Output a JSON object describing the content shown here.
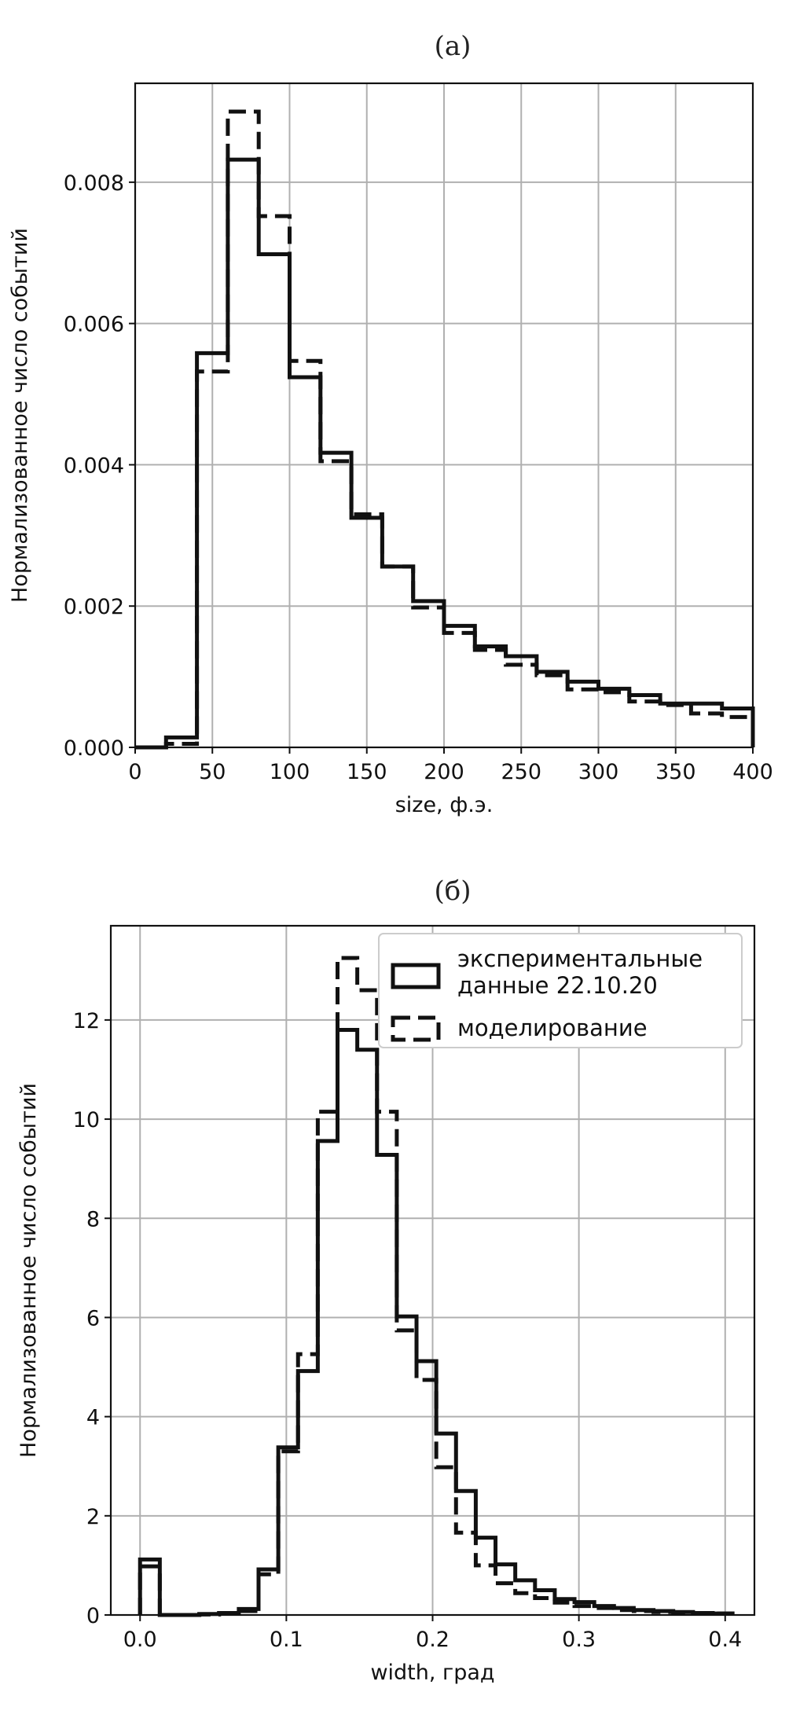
{
  "chart_data": [
    {
      "type": "histogram",
      "panel_label": "(а)",
      "xlabel": "size, ф.э.",
      "ylabel": "Нормализованное число событий",
      "xlim": [
        0,
        400
      ],
      "ylim": [
        0,
        0.0094
      ],
      "xticks": [
        0,
        50,
        100,
        150,
        200,
        250,
        300,
        350,
        400
      ],
      "xtick_labels": [
        "0",
        "50",
        "100",
        "150",
        "200",
        "250",
        "300",
        "350",
        "400"
      ],
      "yticks": [
        0,
        0.002,
        0.004,
        0.006,
        0.008
      ],
      "ytick_labels": [
        "0.000",
        "0.002",
        "0.004",
        "0.006",
        "0.008"
      ],
      "grid": true,
      "bin_edges": [
        0,
        20,
        40,
        60,
        80,
        100,
        120,
        140,
        160,
        180,
        200,
        220,
        240,
        260,
        280,
        300,
        320,
        340,
        360,
        380,
        400
      ],
      "series": [
        {
          "style": "solid",
          "values": [
            0.0,
            0.00014,
            0.00558,
            0.00832,
            0.00698,
            0.00524,
            0.00417,
            0.00325,
            0.00256,
            0.00207,
            0.00172,
            0.00143,
            0.00129,
            0.00107,
            0.00093,
            0.00083,
            0.00074,
            0.00062,
            0.00062,
            0.00055
          ]
        },
        {
          "style": "dashed",
          "values": [
            0.0,
            5e-05,
            0.00532,
            0.009,
            0.00752,
            0.00547,
            0.00405,
            0.0033,
            0.00256,
            0.00198,
            0.00162,
            0.00138,
            0.00117,
            0.00102,
            0.00082,
            0.00078,
            0.00065,
            0.0006,
            0.00048,
            0.00043
          ]
        }
      ]
    },
    {
      "type": "histogram",
      "panel_label": "(б)",
      "xlabel": "width, град",
      "ylabel": "Нормализованное число событий",
      "xlim": [
        -0.02,
        0.42
      ],
      "ylim": [
        0,
        13.9
      ],
      "xticks": [
        0.0,
        0.1,
        0.2,
        0.3,
        0.4
      ],
      "xtick_labels": [
        "0.0",
        "0.1",
        "0.2",
        "0.3",
        "0.4"
      ],
      "yticks": [
        0,
        2,
        4,
        6,
        8,
        10,
        12
      ],
      "ytick_labels": [
        "0",
        "2",
        "4",
        "6",
        "8",
        "10",
        "12"
      ],
      "grid": true,
      "bin_start": 0.0,
      "bin_width": 0.0135,
      "series": [
        {
          "name": "экспериментальные\nданные 22.10.20",
          "style": "solid",
          "values": [
            1.12,
            0.0,
            0.0,
            0.02,
            0.04,
            0.12,
            0.92,
            3.38,
            4.92,
            9.56,
            11.8,
            11.4,
            9.28,
            6.02,
            5.12,
            3.66,
            2.5,
            1.56,
            1.02,
            0.7,
            0.5,
            0.32,
            0.26,
            0.18,
            0.14,
            0.1,
            0.08,
            0.06,
            0.04,
            0.03
          ]
        },
        {
          "name": "моделирование",
          "style": "dashed",
          "values": [
            0.98,
            0.0,
            0.0,
            0.01,
            0.03,
            0.08,
            0.82,
            3.3,
            5.26,
            10.15,
            13.25,
            12.6,
            10.15,
            5.74,
            4.74,
            2.98,
            1.66,
            1.0,
            0.64,
            0.44,
            0.34,
            0.25,
            0.18,
            0.14,
            0.1,
            0.08,
            0.06,
            0.05,
            0.04,
            0.03
          ]
        }
      ],
      "legend": {
        "position": "upper-right"
      }
    }
  ]
}
